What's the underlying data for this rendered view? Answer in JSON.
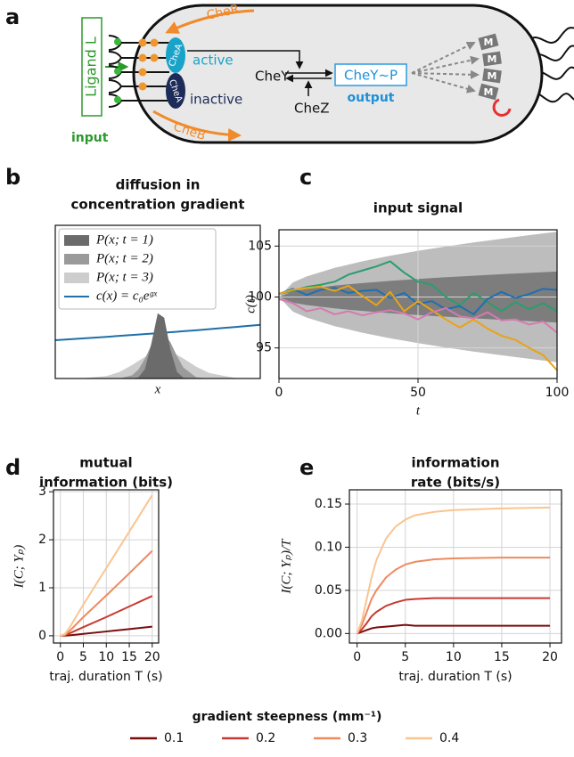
{
  "diagram": {
    "panel": "a",
    "ligand": "Ligand L",
    "input": "input",
    "cher": "CheR",
    "active": "active",
    "chea": [
      "CheA",
      "CheA"
    ],
    "inactive": "inactive",
    "cheb": "CheB",
    "chey": "CheY",
    "chez": "CheZ",
    "cheyp": "CheY~P",
    "output": "output",
    "motors": [
      "M",
      "M",
      "M",
      "M"
    ]
  },
  "chart_data": [
    {
      "panel": "b",
      "type": "area",
      "title": [
        "diffusion in",
        "concentration gradient"
      ],
      "xlabel": "x",
      "legend": "upper left",
      "x": [
        -4,
        -3,
        -2,
        -1.5,
        -1,
        -0.75,
        -0.5,
        -0.25,
        0,
        0.25,
        0.5,
        0.75,
        1,
        1.5,
        2,
        3,
        4
      ],
      "xlim": [
        -4,
        4
      ],
      "ylim": [
        0,
        1
      ],
      "series": [
        {
          "name": "P(x; t = 1)",
          "color": "#6b6b6b",
          "style": "area",
          "values": [
            0,
            0,
            0,
            0,
            0,
            0.008,
            0.061,
            0.228,
            0.426,
            0.397,
            0.185,
            0.043,
            0.005,
            0,
            0,
            0,
            0
          ]
        },
        {
          "name": "P(x; t = 2)",
          "color": "#9a9a9a",
          "style": "area",
          "values": [
            0,
            0,
            0,
            0.001,
            0.021,
            0.059,
            0.129,
            0.218,
            0.287,
            0.294,
            0.235,
            0.146,
            0.071,
            0.008,
            0,
            0,
            0
          ]
        },
        {
          "name": "P(x; t = 3)",
          "color": "#cdcdcd",
          "style": "area",
          "values": [
            0,
            0.001,
            0.016,
            0.042,
            0.088,
            0.115,
            0.141,
            0.163,
            0.176,
            0.18,
            0.172,
            0.155,
            0.131,
            0.077,
            0.036,
            0.004,
            0
          ]
        },
        {
          "name": "c(x) = c₀eᵍˣ",
          "color": "#1f6fa8",
          "style": "line",
          "values": [
            0.25,
            0.261,
            0.272,
            0.278,
            0.284,
            0.287,
            0.29,
            0.293,
            0.296,
            0.299,
            0.302,
            0.305,
            0.309,
            0.315,
            0.322,
            0.336,
            0.35
          ]
        }
      ]
    },
    {
      "panel": "c",
      "type": "line",
      "title": "input signal",
      "xlabel": "t",
      "ylabel": "c(t)",
      "grid": true,
      "x": [
        0,
        5,
        10,
        15,
        20,
        25,
        30,
        35,
        40,
        45,
        50,
        55,
        60,
        65,
        70,
        75,
        80,
        85,
        90,
        95,
        100
      ],
      "xlim": [
        0,
        100
      ],
      "xticks": [
        0,
        50,
        100
      ],
      "ylim": [
        92,
        106.6
      ],
      "yticks": [
        95,
        100,
        105
      ],
      "bands": [
        {
          "color": "#bdbdbd",
          "x": [
            0,
            5,
            10,
            20,
            30,
            40,
            50,
            60,
            70,
            80,
            90,
            100
          ],
          "lower": [
            100,
            98.57,
            97.98,
            97.14,
            96.49,
            95.95,
            95.47,
            95.04,
            94.65,
            94.28,
            93.93,
            93.6
          ],
          "upper": [
            100,
            101.43,
            102.02,
            102.86,
            103.51,
            104.05,
            104.53,
            104.96,
            105.35,
            105.72,
            106.07,
            106.4
          ]
        },
        {
          "color": "#7d7d7d",
          "x": [
            0,
            5,
            10,
            20,
            30,
            40,
            50,
            60,
            70,
            80,
            90,
            100
          ],
          "lower": [
            100,
            99.44,
            99.21,
            98.88,
            98.63,
            98.42,
            98.23,
            98.06,
            97.91,
            97.76,
            97.63,
            97.5
          ],
          "upper": [
            100,
            100.56,
            100.79,
            101.12,
            101.37,
            101.58,
            101.77,
            101.94,
            102.09,
            102.24,
            102.37,
            102.5
          ]
        }
      ],
      "series": [
        {
          "color": "#2a9d6e",
          "values": [
            100.3,
            100.6,
            101,
            101.2,
            101.5,
            102.2,
            102.6,
            103,
            103.5,
            102.4,
            101.5,
            101.2,
            100,
            99.2,
            100.4,
            99.5,
            98.6,
            99.5,
            98.8,
            99.4,
            98.6
          ]
        },
        {
          "color": "#1f6fb0",
          "values": [
            100.3,
            100.8,
            100.2,
            100.7,
            100.9,
            100.4,
            100.6,
            100.7,
            99.9,
            100.4,
            99.3,
            99.6,
            98.8,
            99.1,
            98.3,
            99.8,
            100.5,
            99.9,
            100.3,
            100.8,
            100.7
          ]
        },
        {
          "color": "#e8a317",
          "values": [
            100.3,
            100.7,
            100.9,
            101,
            100.6,
            101.1,
            100.1,
            99.2,
            100.5,
            98.6,
            99.6,
            98.7,
            97.8,
            97,
            97.8,
            96.9,
            96.2,
            95.8,
            95,
            94.3,
            92.8
          ]
        },
        {
          "color": "#d47bb0",
          "values": [
            99.8,
            99.4,
            98.6,
            98.9,
            98.3,
            98.6,
            98.2,
            98.5,
            98.7,
            98.4,
            97.8,
            98.5,
            98.9,
            98.1,
            97.9,
            98.5,
            97.7,
            97.8,
            97.3,
            97.6,
            96.5
          ]
        }
      ]
    },
    {
      "panel": "d",
      "type": "line",
      "title": [
        "mutual",
        "information (bits)"
      ],
      "xlabel": "traj. duration T (s)",
      "ylabel": "I(C; Yₚ)",
      "grid": true,
      "legend": "bottom",
      "legend_title": "gradient steepness (mm⁻¹)",
      "x": [
        0,
        1,
        2,
        5,
        10,
        15,
        20
      ],
      "xlim": [
        -1.5,
        21.4
      ],
      "xticks": [
        0,
        5,
        10,
        15,
        20
      ],
      "ylim": [
        -0.15,
        3.04
      ],
      "yticks": [
        0,
        1,
        2,
        3
      ],
      "series": [
        {
          "name": "0.1",
          "color": "#7a0c0c",
          "values": [
            0,
            0.003,
            0.01,
            0.04,
            0.09,
            0.14,
            0.19
          ]
        },
        {
          "name": "0.2",
          "color": "#c83a30",
          "values": [
            0,
            0.01,
            0.05,
            0.18,
            0.39,
            0.61,
            0.83
          ]
        },
        {
          "name": "0.3",
          "color": "#ee8a5e",
          "values": [
            0,
            0.02,
            0.1,
            0.39,
            0.84,
            1.3,
            1.77
          ]
        },
        {
          "name": "0.4",
          "color": "#f9c590",
          "values": [
            0,
            0.04,
            0.17,
            0.65,
            1.41,
            2.17,
            2.93
          ]
        }
      ]
    },
    {
      "panel": "e",
      "type": "line",
      "title": [
        "information",
        "rate (bits/s)"
      ],
      "xlabel": "traj. duration T (s)",
      "ylabel": "I(C; Yₚ)/T",
      "grid": true,
      "x": [
        0,
        0.5,
        1,
        1.5,
        2,
        3,
        4,
        5,
        6,
        8,
        10,
        15,
        20
      ],
      "xlim": [
        -0.8,
        21.2
      ],
      "xticks": [
        0,
        5,
        10,
        15,
        20
      ],
      "ylim": [
        -0.011,
        0.1665
      ],
      "yticks": [
        {
          "value": 0,
          "label": "0.00"
        },
        {
          "value": 0.05,
          "label": "0.05"
        },
        {
          "value": 0.1,
          "label": "0.10"
        },
        {
          "value": 0.15,
          "label": "0.15"
        }
      ],
      "series": [
        {
          "color": "#7a0c0c",
          "values": [
            0,
            0.002,
            0.004,
            0.006,
            0.007,
            0.008,
            0.009,
            0.01,
            0.009,
            0.009,
            0.009,
            0.009,
            0.009
          ]
        },
        {
          "color": "#c83a30",
          "values": [
            0,
            0.005,
            0.012,
            0.02,
            0.025,
            0.032,
            0.036,
            0.039,
            0.04,
            0.041,
            0.041,
            0.041,
            0.041
          ]
        },
        {
          "color": "#ee8a5e",
          "values": [
            0,
            0.01,
            0.025,
            0.04,
            0.05,
            0.065,
            0.074,
            0.08,
            0.083,
            0.086,
            0.087,
            0.088,
            0.088
          ]
        },
        {
          "color": "#f9c590",
          "values": [
            0,
            0.015,
            0.04,
            0.065,
            0.085,
            0.11,
            0.124,
            0.132,
            0.137,
            0.141,
            0.143,
            0.145,
            0.146
          ]
        }
      ]
    }
  ]
}
